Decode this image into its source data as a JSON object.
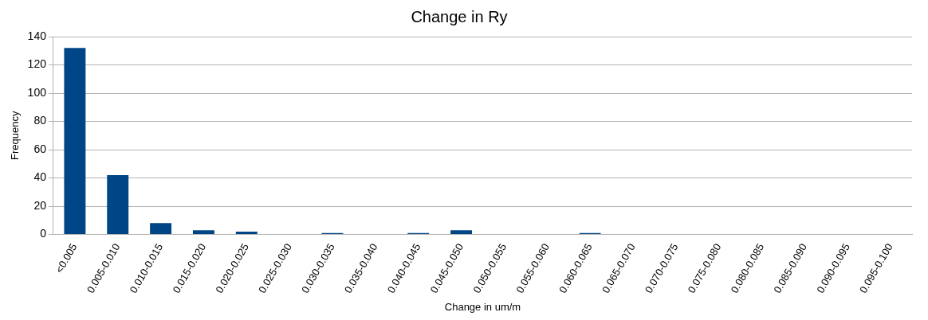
{
  "chart_data": {
    "type": "bar",
    "title": "Change in Ry",
    "xlabel": "Change in um/m",
    "ylabel": "Frequency",
    "categories": [
      "<0.005",
      "0.005-0.010",
      "0.010-0.015",
      "0.015-0.020",
      "0.020-0.025",
      "0.025-0.030",
      "0.030-0.035",
      "0.035-0.040",
      "0.040-0.045",
      "0.045-0.050",
      "0.050-0.055",
      "0.055-0.060",
      "0.060-0.065",
      "0.065-0.070",
      "0.070-0.075",
      "0.075-0.080",
      "0.080-0.085",
      "0.085-0.090",
      "0.090-0.095",
      "0.095-0.100"
    ],
    "values": [
      132,
      42,
      8,
      3,
      2,
      0,
      1,
      0,
      1,
      3,
      0,
      0,
      1,
      0,
      0,
      0,
      0,
      0,
      0,
      0
    ],
    "color": "#004586",
    "ylim": [
      0,
      140
    ],
    "yticks": [
      0,
      20,
      40,
      60,
      80,
      100,
      120,
      140
    ],
    "grid": "y",
    "legend": false
  }
}
